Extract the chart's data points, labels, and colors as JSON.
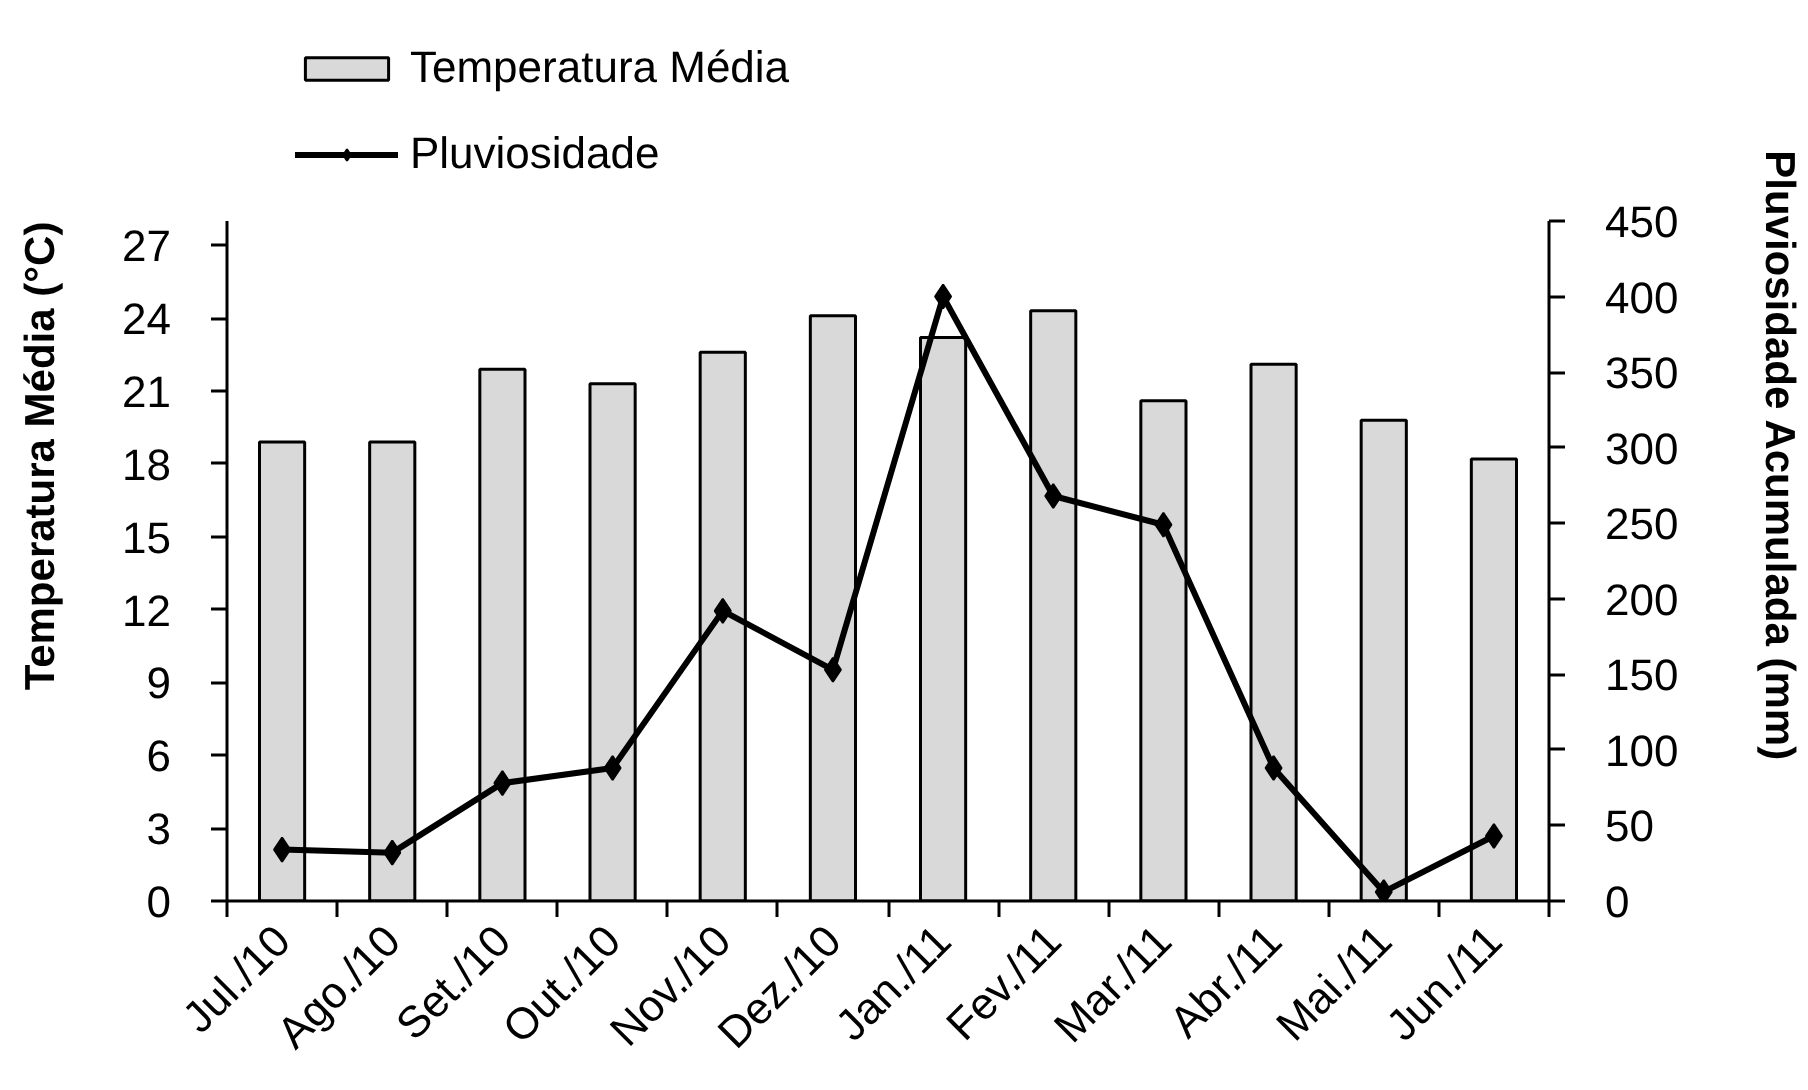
{
  "chart_data": {
    "type": "bar",
    "categories": [
      "Jul./10",
      "Ago./10",
      "Set./10",
      "Out./10",
      "Nov./10",
      "Dez./10",
      "Jan./11",
      "Fev./11",
      "Mar./11",
      "Abr./11",
      "Mai./11",
      "Jun./11"
    ],
    "ylabel": "Temperatura Média (°C)",
    "y2label": "Pluviosidade Acumulada (mm)",
    "ylim": [
      0,
      28
    ],
    "yticks": [
      0,
      3,
      6,
      9,
      12,
      15,
      18,
      21,
      24,
      27
    ],
    "y2lim": [
      0,
      450
    ],
    "y2ticks": [
      0,
      50,
      100,
      150,
      200,
      250,
      300,
      350,
      400,
      450
    ],
    "series": [
      {
        "name": "Temperatura Média",
        "color": "#d9d9d9",
        "values": [
          18.9,
          18.9,
          21.9,
          21.3,
          22.6,
          24.1,
          23.2,
          24.3,
          20.6,
          22.1,
          19.8,
          18.2
        ]
      },
      {
        "name": "Pluviosidade",
        "type": "line",
        "axis": "y2",
        "color": "#000000",
        "marker": "diamond",
        "values": [
          34,
          32,
          78,
          88,
          192,
          153,
          400,
          268,
          249,
          88,
          6,
          43
        ]
      }
    ],
    "legend": "top left",
    "grid": false
  }
}
